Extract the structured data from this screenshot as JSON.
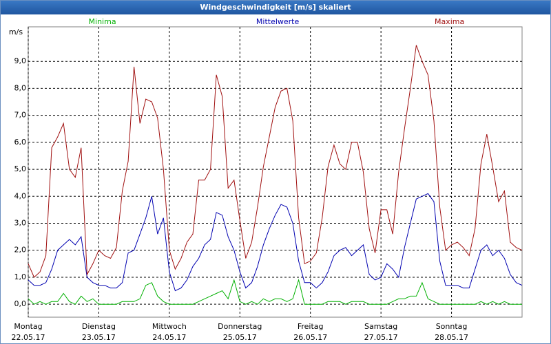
{
  "chart_data": {
    "type": "line",
    "title": "Windgeschwindigkeit [m/s] skaliert",
    "y_label": "m/s",
    "x": [
      0,
      2,
      4,
      6,
      8,
      10,
      12,
      14,
      16,
      18,
      20,
      22,
      24,
      26,
      28,
      30,
      32,
      34,
      36,
      38,
      40,
      42,
      44,
      46,
      48,
      50,
      52,
      54,
      56,
      58,
      60,
      62,
      64,
      66,
      68,
      70,
      72,
      74,
      76,
      78,
      80,
      82,
      84,
      86,
      88,
      90,
      92,
      94,
      96,
      98,
      100,
      102,
      104,
      106,
      108,
      110,
      112,
      114,
      116,
      118,
      120,
      122,
      124,
      126,
      128,
      130,
      132,
      134,
      136,
      138,
      140,
      142,
      144,
      146,
      148,
      150,
      152,
      154,
      156,
      158,
      160,
      162,
      164,
      166,
      168
    ],
    "xlim": [
      0,
      168
    ],
    "xticks": [
      {
        "value": 0,
        "label": "Montag\n22.05.17"
      },
      {
        "value": 24,
        "label": "Dienstag\n23.05.17"
      },
      {
        "value": 48,
        "label": "Mittwoch\n24.05.17"
      },
      {
        "value": 72,
        "label": "Donnerstag\n25.05.17"
      },
      {
        "value": 96,
        "label": "Freitag\n26.05.17"
      },
      {
        "value": 120,
        "label": "Samstag\n27.05.17"
      },
      {
        "value": 144,
        "label": "Sonntag\n28.05.17"
      }
    ],
    "ylim": [
      -0.48,
      10.28
    ],
    "yticks": [
      {
        "value": 0,
        "label": "0,0"
      },
      {
        "value": 1,
        "label": "1,0"
      },
      {
        "value": 2,
        "label": "2,0"
      },
      {
        "value": 3,
        "label": "3,0"
      },
      {
        "value": 4,
        "label": "4,0"
      },
      {
        "value": 5,
        "label": "5,0"
      },
      {
        "value": 6,
        "label": "6,0"
      },
      {
        "value": 7,
        "label": "7,0"
      },
      {
        "value": 8,
        "label": "8,0"
      },
      {
        "value": 9,
        "label": "9,0"
      }
    ],
    "grid": true,
    "series": [
      {
        "name": "Minima",
        "color": "#00b000",
        "values": [
          0.2,
          0.0,
          0.1,
          0.0,
          0.1,
          0.1,
          0.4,
          0.1,
          0.0,
          0.3,
          0.1,
          0.2,
          0.0,
          0.0,
          0.0,
          0.0,
          0.1,
          0.1,
          0.1,
          0.2,
          0.7,
          0.8,
          0.3,
          0.1,
          0.0,
          0.0,
          0.0,
          0.0,
          0.0,
          0.1,
          0.2,
          0.3,
          0.4,
          0.5,
          0.2,
          0.9,
          0.1,
          0.0,
          0.1,
          0.0,
          0.2,
          0.1,
          0.2,
          0.2,
          0.1,
          0.2,
          0.9,
          0.0,
          0.0,
          0.0,
          0.0,
          0.1,
          0.1,
          0.1,
          0.0,
          0.1,
          0.1,
          0.1,
          0.0,
          0.0,
          0.0,
          0.0,
          0.1,
          0.2,
          0.2,
          0.3,
          0.3,
          0.8,
          0.2,
          0.1,
          0.0,
          0.0,
          0.0,
          0.0,
          0.0,
          0.0,
          0.0,
          0.1,
          0.0,
          0.1,
          0.0,
          0.1,
          0.0,
          0.0,
          0.0
        ]
      },
      {
        "name": "Mittelwerte",
        "color": "#0000b0",
        "values": [
          0.9,
          0.7,
          0.7,
          0.8,
          1.3,
          2.0,
          2.2,
          2.4,
          2.2,
          2.5,
          1.0,
          0.8,
          0.7,
          0.7,
          0.6,
          0.6,
          0.8,
          1.9,
          2.0,
          2.6,
          3.2,
          4.0,
          2.6,
          3.2,
          1.2,
          0.5,
          0.6,
          0.9,
          1.4,
          1.7,
          2.2,
          2.4,
          3.4,
          3.3,
          2.5,
          2.0,
          1.2,
          0.6,
          0.8,
          1.4,
          2.2,
          2.8,
          3.3,
          3.7,
          3.6,
          3.0,
          1.6,
          0.8,
          0.8,
          0.6,
          0.8,
          1.2,
          1.8,
          2.0,
          2.1,
          1.8,
          2.0,
          2.2,
          1.1,
          0.9,
          1.0,
          1.5,
          1.3,
          1.0,
          2.1,
          3.0,
          3.9,
          4.0,
          4.1,
          3.8,
          1.6,
          0.7,
          0.7,
          0.7,
          0.6,
          0.6,
          1.3,
          2.0,
          2.2,
          1.8,
          2.0,
          1.7,
          1.1,
          0.8,
          0.7
        ]
      },
      {
        "name": "Maxima",
        "color": "#a01010",
        "values": [
          1.5,
          1.0,
          1.2,
          1.8,
          5.8,
          6.2,
          6.7,
          5.0,
          4.7,
          5.8,
          1.1,
          1.5,
          2.0,
          1.8,
          1.7,
          2.1,
          4.2,
          5.3,
          8.8,
          6.7,
          7.6,
          7.5,
          6.9,
          5.0,
          2.0,
          1.3,
          1.7,
          2.3,
          2.6,
          4.6,
          4.6,
          5.0,
          8.5,
          7.7,
          4.3,
          4.6,
          3.1,
          1.7,
          2.3,
          3.6,
          5.1,
          6.2,
          7.3,
          7.9,
          8.0,
          6.8,
          3.2,
          1.5,
          1.6,
          1.9,
          3.2,
          5.1,
          5.9,
          5.2,
          5.0,
          6.0,
          6.0,
          4.9,
          2.8,
          1.9,
          3.5,
          3.5,
          2.6,
          4.9,
          6.5,
          8.0,
          9.6,
          9.0,
          8.5,
          6.8,
          3.6,
          2.0,
          2.2,
          2.3,
          2.1,
          1.8,
          2.8,
          5.2,
          6.3,
          5.1,
          3.8,
          4.2,
          2.3,
          2.1,
          2.0
        ]
      }
    ]
  }
}
